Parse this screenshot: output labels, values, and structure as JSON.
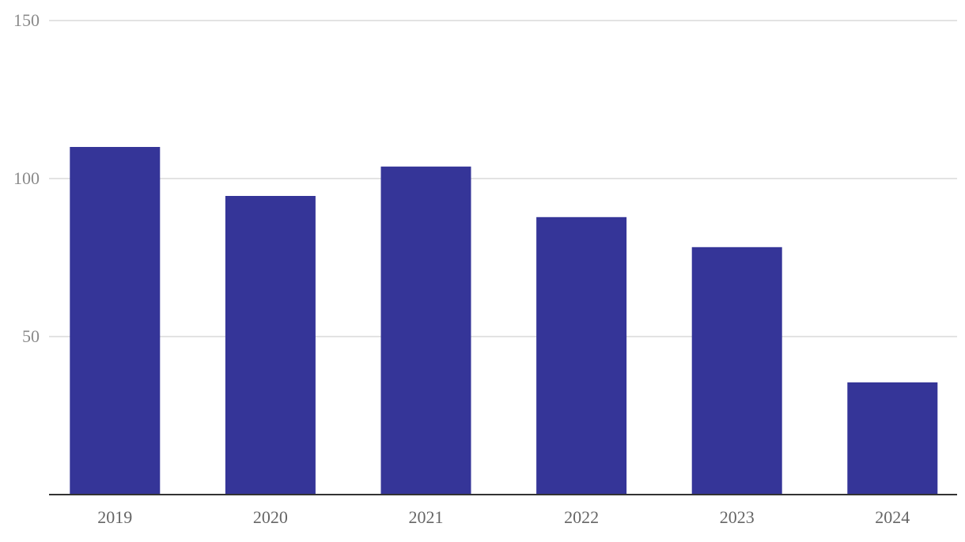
{
  "chart_data": {
    "type": "bar",
    "categories": [
      "2019",
      "2020",
      "2021",
      "2022",
      "2023",
      "2024"
    ],
    "values": [
      110,
      94.5,
      103.8,
      87.8,
      78.3,
      35.5
    ],
    "color": "#353598",
    "ylim": [
      0,
      150
    ],
    "yticks": [
      50,
      100,
      150
    ],
    "grid": true
  }
}
